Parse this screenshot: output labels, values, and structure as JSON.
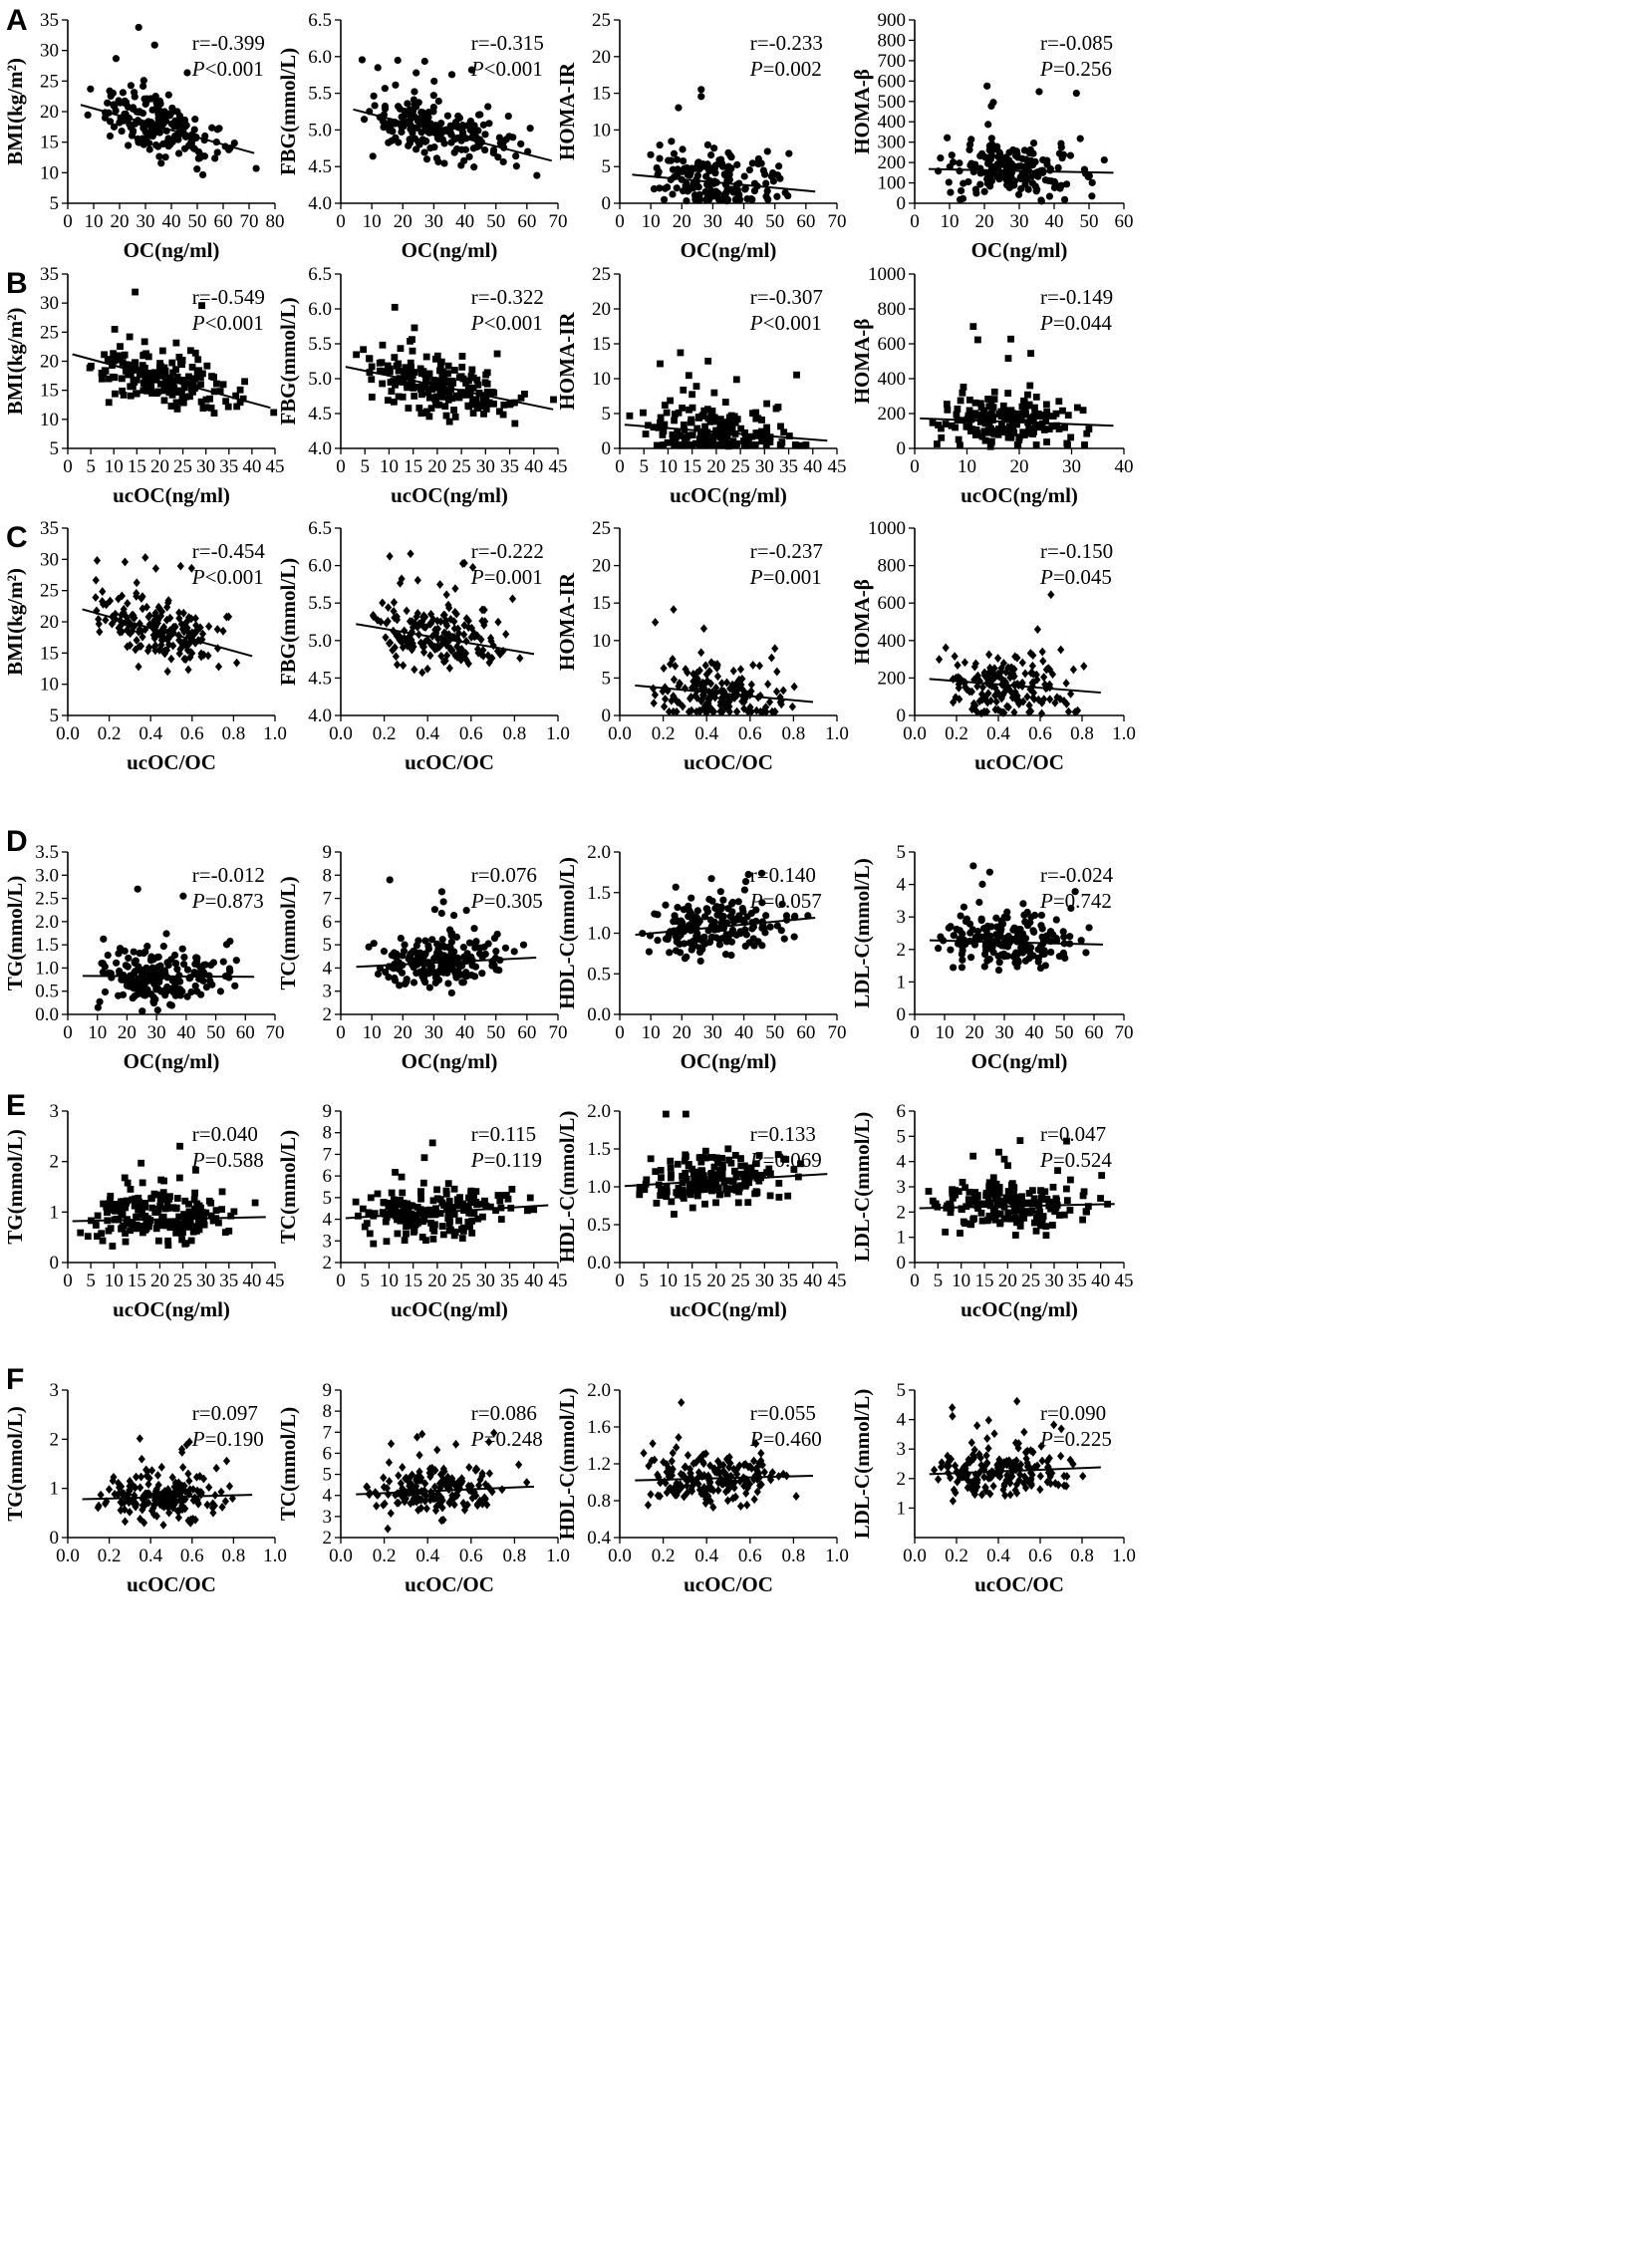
{
  "figure": {
    "panel_labels": [
      "A",
      "B",
      "C",
      "D",
      "E",
      "F"
    ]
  },
  "chart_data": [
    {
      "type": "scatter",
      "panel": "A",
      "xlabel": "OC(ng/ml)",
      "ylabel": "BMI(kg/m²)",
      "xlim": [
        0,
        80
      ],
      "ylim": [
        5,
        35
      ],
      "xticks": [
        0,
        10,
        20,
        30,
        40,
        50,
        60,
        70,
        80
      ],
      "yticks": [
        5,
        10,
        15,
        20,
        25,
        30,
        35
      ],
      "marker": "circle",
      "stat_r": "r=-0.399",
      "stat_p": "P<0.001",
      "trend": [
        [
          5,
          21.1
        ],
        [
          72,
          13.2
        ]
      ],
      "n_points": 190,
      "seed": 11
    },
    {
      "type": "scatter",
      "panel": "A",
      "xlabel": "OC(ng/ml)",
      "ylabel": "FBG(mmol/L)",
      "xlim": [
        0,
        70
      ],
      "ylim": [
        4.0,
        6.5
      ],
      "xticks": [
        0,
        10,
        20,
        30,
        40,
        50,
        60,
        70
      ],
      "yticks": [
        4.0,
        4.5,
        5.0,
        5.5,
        6.0,
        6.5
      ],
      "marker": "circle",
      "stat_r": "r=-0.315",
      "stat_p": "P<0.001",
      "trend": [
        [
          4,
          5.28
        ],
        [
          68,
          4.58
        ]
      ],
      "n_points": 190,
      "seed": 12
    },
    {
      "type": "scatter",
      "panel": "A",
      "xlabel": "OC(ng/ml)",
      "ylabel": "HOMA-IR",
      "xlim": [
        0,
        70
      ],
      "ylim": [
        0,
        25
      ],
      "xticks": [
        0,
        10,
        20,
        30,
        40,
        50,
        60,
        70
      ],
      "yticks": [
        0,
        5,
        10,
        15,
        20,
        25
      ],
      "marker": "circle",
      "stat_r": "r=-0.233",
      "stat_p": "P=0.002",
      "trend": [
        [
          4,
          3.9
        ],
        [
          63,
          1.6
        ]
      ],
      "n_points": 180,
      "seed": 13
    },
    {
      "type": "scatter",
      "panel": "A",
      "xlabel": "OC(ng/ml)",
      "ylabel": "HOMA-β",
      "xlim": [
        0,
        60
      ],
      "ylim": [
        0,
        900
      ],
      "xticks": [
        0,
        10,
        20,
        30,
        40,
        50,
        60
      ],
      "yticks": [
        0,
        100,
        200,
        300,
        400,
        500,
        600,
        700,
        800,
        900
      ],
      "marker": "circle",
      "stat_r": "r=-0.085",
      "stat_p": "P=0.256",
      "trend": [
        [
          4,
          168
        ],
        [
          57,
          150
        ]
      ],
      "n_points": 180,
      "seed": 14
    },
    {
      "type": "scatter",
      "panel": "B",
      "xlabel": "ucOC(ng/ml)",
      "ylabel": "BMI(kg/m²)",
      "xlim": [
        0,
        45
      ],
      "ylim": [
        5,
        35
      ],
      "xticks": [
        0,
        5,
        10,
        15,
        20,
        25,
        30,
        35,
        40,
        45
      ],
      "yticks": [
        5,
        10,
        15,
        20,
        25,
        30,
        35
      ],
      "marker": "square",
      "stat_r": "r=-0.549",
      "stat_p": "P<0.001",
      "trend": [
        [
          1,
          21.2
        ],
        [
          44,
          12.0
        ]
      ],
      "n_points": 190,
      "seed": 21
    },
    {
      "type": "scatter",
      "panel": "B",
      "xlabel": "ucOC(ng/ml)",
      "ylabel": "FBG(mmol/L)",
      "xlim": [
        0,
        45
      ],
      "ylim": [
        4.0,
        6.5
      ],
      "xticks": [
        0,
        5,
        10,
        15,
        20,
        25,
        30,
        35,
        40,
        45
      ],
      "yticks": [
        4.0,
        4.5,
        5.0,
        5.5,
        6.0,
        6.5
      ],
      "marker": "square",
      "stat_r": "r=-0.322",
      "stat_p": "P<0.001",
      "trend": [
        [
          1,
          5.17
        ],
        [
          44,
          4.56
        ]
      ],
      "n_points": 190,
      "seed": 22
    },
    {
      "type": "scatter",
      "panel": "B",
      "xlabel": "ucOC(ng/ml)",
      "ylabel": "HOMA-IR",
      "xlim": [
        0,
        45
      ],
      "ylim": [
        0,
        25
      ],
      "xticks": [
        0,
        5,
        10,
        15,
        20,
        25,
        30,
        35,
        40,
        45
      ],
      "yticks": [
        0,
        5,
        10,
        15,
        20,
        25
      ],
      "marker": "square",
      "stat_r": "r=-0.307",
      "stat_p": "P<0.001",
      "trend": [
        [
          1,
          3.4
        ],
        [
          43,
          1.1
        ]
      ],
      "n_points": 180,
      "seed": 23
    },
    {
      "type": "scatter",
      "panel": "B",
      "xlabel": "ucOC(ng/ml)",
      "ylabel": "HOMA-β",
      "xlim": [
        0,
        40
      ],
      "ylim": [
        0,
        1000
      ],
      "xticks": [
        0,
        10,
        20,
        30,
        40
      ],
      "yticks": [
        0,
        200,
        400,
        600,
        800,
        1000
      ],
      "marker": "square",
      "stat_r": "r=-0.149",
      "stat_p": "P=0.044",
      "trend": [
        [
          1,
          172
        ],
        [
          38,
          130
        ]
      ],
      "n_points": 180,
      "seed": 24
    },
    {
      "type": "scatter",
      "panel": "C",
      "xlabel": "ucOC/OC",
      "ylabel": "BMI(kg/m²)",
      "xlim": [
        0.0,
        1.0
      ],
      "ylim": [
        5,
        35
      ],
      "xticks": [
        0.0,
        0.2,
        0.4,
        0.6,
        0.8,
        1.0
      ],
      "yticks": [
        5,
        10,
        15,
        20,
        25,
        30,
        35
      ],
      "marker": "diamond",
      "stat_r": "r=-0.454",
      "stat_p": "P<0.001",
      "trend": [
        [
          0.07,
          22.0
        ],
        [
          0.89,
          14.5
        ]
      ],
      "n_points": 190,
      "seed": 31
    },
    {
      "type": "scatter",
      "panel": "C",
      "xlabel": "ucOC/OC",
      "ylabel": "FBG(mmol/L)",
      "xlim": [
        0.0,
        1.0
      ],
      "ylim": [
        4.0,
        6.5
      ],
      "xticks": [
        0.0,
        0.2,
        0.4,
        0.6,
        0.8,
        1.0
      ],
      "yticks": [
        4.0,
        4.5,
        5.0,
        5.5,
        6.0,
        6.5
      ],
      "marker": "diamond",
      "stat_r": "r=-0.222",
      "stat_p": "P=0.001",
      "trend": [
        [
          0.07,
          5.22
        ],
        [
          0.89,
          4.82
        ]
      ],
      "n_points": 190,
      "seed": 32
    },
    {
      "type": "scatter",
      "panel": "C",
      "xlabel": "ucOC/OC",
      "ylabel": "HOMA-IR",
      "xlim": [
        0.0,
        1.0
      ],
      "ylim": [
        0,
        25
      ],
      "xticks": [
        0.0,
        0.2,
        0.4,
        0.6,
        0.8,
        1.0
      ],
      "yticks": [
        0,
        5,
        10,
        15,
        20,
        25
      ],
      "marker": "diamond",
      "stat_r": "r=-0.237",
      "stat_p": "P=0.001",
      "trend": [
        [
          0.07,
          4.0
        ],
        [
          0.89,
          1.8
        ]
      ],
      "n_points": 180,
      "seed": 33
    },
    {
      "type": "scatter",
      "panel": "C",
      "xlabel": "ucOC/OC",
      "ylabel": "HOMA-β",
      "xlim": [
        0.0,
        1.0
      ],
      "ylim": [
        0,
        1000
      ],
      "xticks": [
        0.0,
        0.2,
        0.4,
        0.6,
        0.8,
        1.0
      ],
      "yticks": [
        0,
        200,
        400,
        600,
        800,
        1000
      ],
      "marker": "diamond",
      "stat_r": "r=-0.150",
      "stat_p": "P=0.045",
      "trend": [
        [
          0.07,
          195
        ],
        [
          0.89,
          122
        ]
      ],
      "n_points": 180,
      "seed": 34
    },
    {
      "type": "scatter",
      "panel": "D",
      "xlabel": "OC(ng/ml)",
      "ylabel": "TG(mmol/L)",
      "xlim": [
        0,
        70
      ],
      "ylim": [
        0.0,
        3.5
      ],
      "xticks": [
        0,
        10,
        20,
        30,
        40,
        50,
        60,
        70
      ],
      "yticks": [
        0.0,
        0.5,
        1.0,
        1.5,
        2.0,
        2.5,
        3.0,
        3.5
      ],
      "marker": "circle",
      "stat_r": "r=-0.012",
      "stat_p": "P=0.873",
      "trend": [
        [
          5,
          0.83
        ],
        [
          63,
          0.81
        ]
      ],
      "n_points": 190,
      "seed": 41
    },
    {
      "type": "scatter",
      "panel": "D",
      "xlabel": "OC(ng/ml)",
      "ylabel": "TC(mmol/L)",
      "xlim": [
        0,
        70
      ],
      "ylim": [
        2,
        9
      ],
      "xticks": [
        0,
        10,
        20,
        30,
        40,
        50,
        60,
        70
      ],
      "yticks": [
        2,
        3,
        4,
        5,
        6,
        7,
        8,
        9
      ],
      "marker": "circle",
      "stat_r": "r=0.076",
      "stat_p": "P=0.305",
      "trend": [
        [
          5,
          4.05
        ],
        [
          63,
          4.45
        ]
      ],
      "n_points": 190,
      "seed": 42
    },
    {
      "type": "scatter",
      "panel": "D",
      "xlabel": "OC(ng/ml)",
      "ylabel": "HDL-C(mmol/L)",
      "xlim": [
        0,
        70
      ],
      "ylim": [
        0.0,
        2.0
      ],
      "xticks": [
        0,
        10,
        20,
        30,
        40,
        50,
        60,
        70
      ],
      "yticks": [
        0.0,
        0.5,
        1.0,
        1.5,
        2.0
      ],
      "marker": "circle",
      "stat_r": "r=0.140",
      "stat_p": "P=0.057",
      "trend": [
        [
          5,
          0.98
        ],
        [
          63,
          1.19
        ]
      ],
      "n_points": 190,
      "seed": 43
    },
    {
      "type": "scatter",
      "panel": "D",
      "xlabel": "OC(ng/ml)",
      "ylabel": "LDL-C(mmol/L)",
      "xlim": [
        0,
        70
      ],
      "ylim": [
        0,
        5
      ],
      "xticks": [
        0,
        10,
        20,
        30,
        40,
        50,
        60,
        70
      ],
      "yticks": [
        0,
        1,
        2,
        3,
        4,
        5
      ],
      "marker": "circle",
      "stat_r": "r=-0.024",
      "stat_p": "P=0.742",
      "trend": [
        [
          5,
          2.28
        ],
        [
          63,
          2.15
        ]
      ],
      "n_points": 190,
      "seed": 44
    },
    {
      "type": "scatter",
      "panel": "E",
      "xlabel": "ucOC(ng/ml)",
      "ylabel": "TG(mmol/L)",
      "xlim": [
        0,
        45
      ],
      "ylim": [
        0,
        3
      ],
      "xticks": [
        0,
        5,
        10,
        15,
        20,
        25,
        30,
        35,
        40,
        45
      ],
      "yticks": [
        0,
        1,
        2,
        3
      ],
      "marker": "square",
      "stat_r": "r=0.040",
      "stat_p": "P=0.588",
      "trend": [
        [
          1,
          0.82
        ],
        [
          43,
          0.9
        ]
      ],
      "n_points": 190,
      "seed": 51
    },
    {
      "type": "scatter",
      "panel": "E",
      "xlabel": "ucOC(ng/ml)",
      "ylabel": "TC(mmol/L)",
      "xlim": [
        0,
        45
      ],
      "ylim": [
        2,
        9
      ],
      "xticks": [
        0,
        5,
        10,
        15,
        20,
        25,
        30,
        35,
        40,
        45
      ],
      "yticks": [
        2,
        3,
        4,
        5,
        6,
        7,
        8,
        9
      ],
      "marker": "square",
      "stat_r": "r=0.115",
      "stat_p": "P=0.119",
      "trend": [
        [
          1,
          4.05
        ],
        [
          43,
          4.65
        ]
      ],
      "n_points": 190,
      "seed": 52
    },
    {
      "type": "scatter",
      "panel": "E",
      "xlabel": "ucOC(ng/ml)",
      "ylabel": "HDL-C(mmol/L)",
      "xlim": [
        0,
        45
      ],
      "ylim": [
        0.0,
        2.0
      ],
      "xticks": [
        0,
        5,
        10,
        15,
        20,
        25,
        30,
        35,
        40,
        45
      ],
      "yticks": [
        0.0,
        0.5,
        1.0,
        1.5,
        2.0
      ],
      "marker": "square",
      "stat_r": "r=0.133",
      "stat_p": "P=0.069",
      "trend": [
        [
          1,
          1.01
        ],
        [
          43,
          1.17
        ]
      ],
      "n_points": 190,
      "seed": 53
    },
    {
      "type": "scatter",
      "panel": "E",
      "xlabel": "ucOC(ng/ml)",
      "ylabel": "LDL-C(mmol/L)",
      "xlim": [
        0,
        45
      ],
      "ylim": [
        0,
        6
      ],
      "xticks": [
        0,
        5,
        10,
        15,
        20,
        25,
        30,
        35,
        40,
        45
      ],
      "yticks": [
        0,
        1,
        2,
        3,
        4,
        5,
        6
      ],
      "marker": "square",
      "stat_r": "r=0.047",
      "stat_p": "P=0.524",
      "trend": [
        [
          1,
          2.15
        ],
        [
          43,
          2.32
        ]
      ],
      "n_points": 190,
      "seed": 54
    },
    {
      "type": "scatter",
      "panel": "F",
      "xlabel": "ucOC/OC",
      "ylabel": "TG(mmol/L)",
      "xlim": [
        0.0,
        1.0
      ],
      "ylim": [
        0,
        3
      ],
      "xticks": [
        0.0,
        0.2,
        0.4,
        0.6,
        0.8,
        1.0
      ],
      "yticks": [
        0,
        1,
        2,
        3
      ],
      "marker": "diamond",
      "stat_r": "r=0.097",
      "stat_p": "P=0.190",
      "trend": [
        [
          0.07,
          0.78
        ],
        [
          0.89,
          0.87
        ]
      ],
      "n_points": 190,
      "seed": 61
    },
    {
      "type": "scatter",
      "panel": "F",
      "xlabel": "ucOC/OC",
      "ylabel": "TC(mmol/L)",
      "xlim": [
        0.0,
        1.0
      ],
      "ylim": [
        2,
        9
      ],
      "xticks": [
        0.0,
        0.2,
        0.4,
        0.6,
        0.8,
        1.0
      ],
      "yticks": [
        2,
        3,
        4,
        5,
        6,
        7,
        8,
        9
      ],
      "marker": "diamond",
      "stat_r": "r=0.086",
      "stat_p": "P=0.248",
      "trend": [
        [
          0.07,
          4.05
        ],
        [
          0.89,
          4.42
        ]
      ],
      "n_points": 190,
      "seed": 62
    },
    {
      "type": "scatter",
      "panel": "F",
      "xlabel": "ucOC/OC",
      "ylabel": "HDL-C(mmol/L)",
      "xlim": [
        0.0,
        1.0
      ],
      "ylim": [
        0.4,
        2.0
      ],
      "xticks": [
        0.0,
        0.2,
        0.4,
        0.6,
        0.8,
        1.0
      ],
      "yticks": [
        0.4,
        0.8,
        1.2,
        1.6,
        2.0
      ],
      "marker": "diamond",
      "stat_r": "r=0.055",
      "stat_p": "P=0.460",
      "trend": [
        [
          0.07,
          1.02
        ],
        [
          0.89,
          1.07
        ]
      ],
      "n_points": 190,
      "seed": 63
    },
    {
      "type": "scatter",
      "panel": "F",
      "xlabel": "ucOC/OC",
      "ylabel": "LDL-C(mmol/L)",
      "xlim": [
        0.0,
        1.0
      ],
      "ylim": [
        0,
        5
      ],
      "xticks": [
        0.0,
        0.2,
        0.4,
        0.6,
        0.8,
        1.0
      ],
      "yticks": [
        1,
        2,
        3,
        4,
        5
      ],
      "marker": "diamond",
      "stat_r": "r=0.090",
      "stat_p": "P=0.225",
      "trend": [
        [
          0.07,
          2.15
        ],
        [
          0.89,
          2.38
        ]
      ],
      "n_points": 190,
      "seed": 64
    }
  ]
}
